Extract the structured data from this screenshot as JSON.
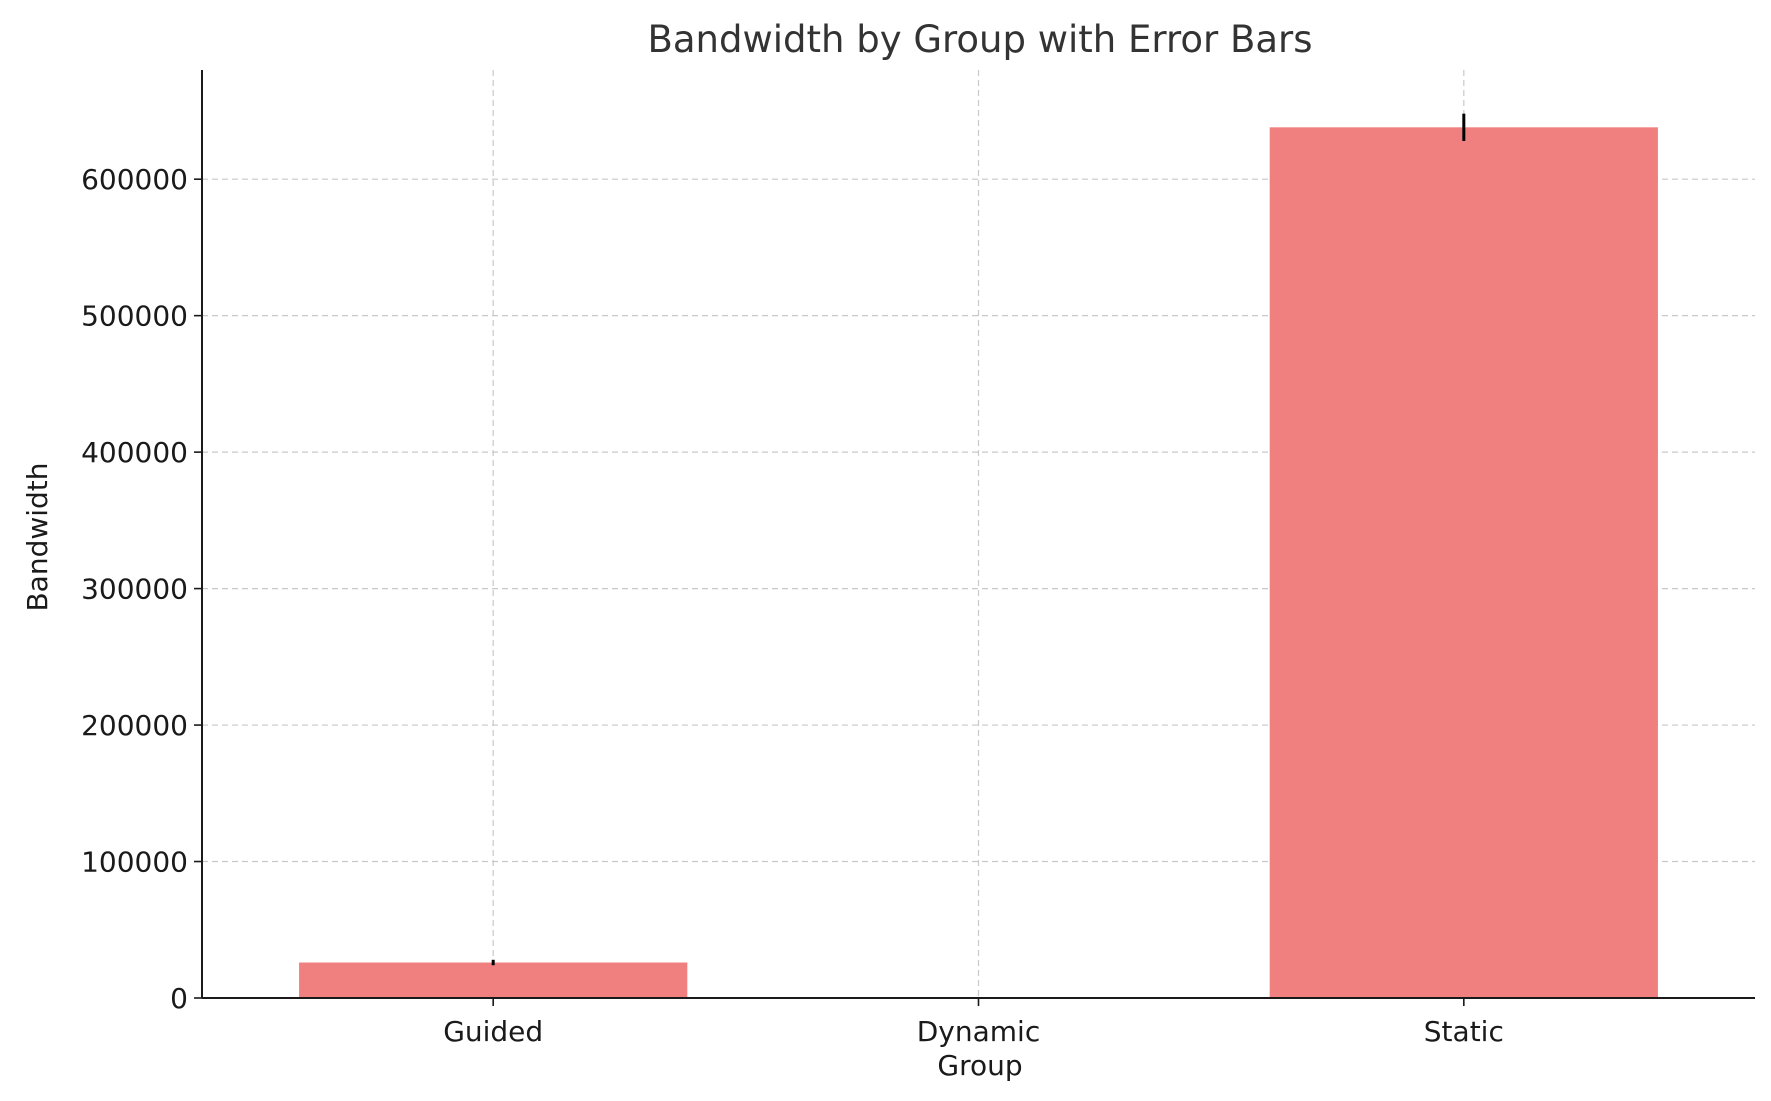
{
  "chart_data": {
    "type": "bar",
    "title": "Bandwidth by Group with Error Bars",
    "xlabel": "Group",
    "ylabel": "Bandwidth",
    "categories": [
      "Guided",
      "Dynamic",
      "Static"
    ],
    "values": [
      26000,
      0,
      638000
    ],
    "errors": [
      2000,
      0,
      10000
    ],
    "ylim": [
      0,
      680000
    ],
    "yticks": [
      0,
      100000,
      200000,
      300000,
      400000,
      500000,
      600000
    ],
    "ytick_labels": [
      "0",
      "100000",
      "200000",
      "300000",
      "400000",
      "500000",
      "600000"
    ],
    "grid": true,
    "bar_color": "#f08080",
    "error_color": "#000000"
  }
}
